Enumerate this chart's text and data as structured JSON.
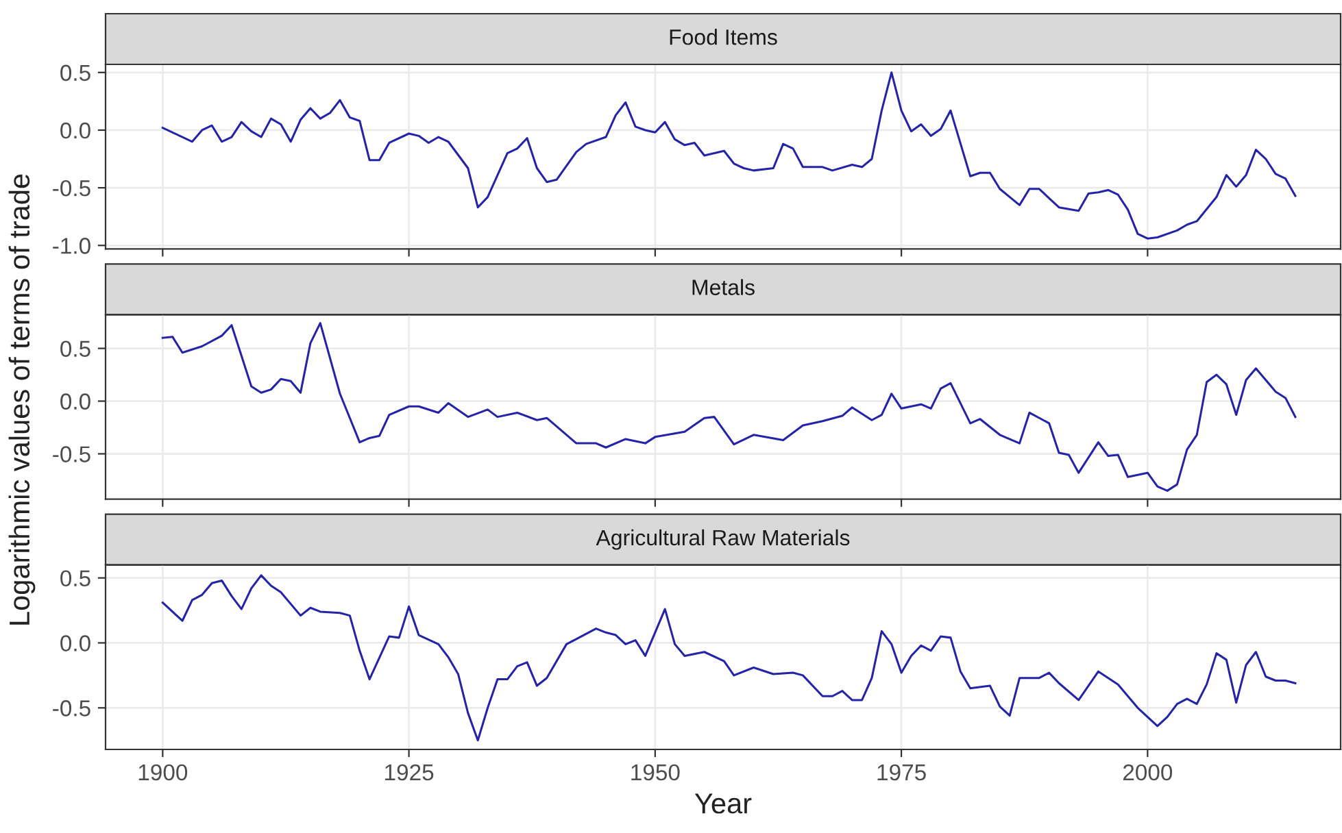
{
  "chart_data": [
    {
      "type": "line",
      "title": "Food Items",
      "tick_labels": "y",
      "grid": true,
      "xlim": [
        1894.2,
        2019.6
      ],
      "xticks": [
        1900,
        1925,
        1950,
        1975,
        2000
      ],
      "ylim": [
        -1.03,
        0.57
      ],
      "yticks": [
        {
          "value": 0.5,
          "label": "0.5"
        },
        {
          "value": 0,
          "label": "0.0"
        },
        {
          "value": -0.5,
          "label": "-0.5"
        },
        {
          "value": -1,
          "label": "-1.0"
        }
      ],
      "x": [
        1900,
        1903,
        1904,
        1905,
        1906,
        1907,
        1908,
        1909,
        1910,
        1911,
        1912,
        1913,
        1914,
        1915,
        1916,
        1917,
        1918,
        1919,
        1920,
        1921,
        1922,
        1923,
        1925,
        1926,
        1927,
        1928,
        1929,
        1931,
        1932,
        1933,
        1935,
        1936,
        1937,
        1938,
        1939,
        1940,
        1942,
        1943,
        1945,
        1946,
        1947,
        1948,
        1949,
        1950,
        1951,
        1952,
        1953,
        1954,
        1955,
        1957,
        1958,
        1959,
        1960,
        1962,
        1963,
        1964,
        1965,
        1967,
        1968,
        1970,
        1971,
        1972,
        1973,
        1974,
        1975,
        1976,
        1977,
        1978,
        1979,
        1980,
        1982,
        1983,
        1984,
        1985,
        1986,
        1987,
        1988,
        1989,
        1990,
        1991,
        1993,
        1994,
        1995,
        1996,
        1997,
        1998,
        1999,
        2000,
        2001,
        2003,
        2004,
        2005,
        2007,
        2008,
        2009,
        2010,
        2011,
        2012,
        2013,
        2014,
        2015
      ],
      "series": [
        {
          "color": "#2424a8",
          "values": [
            0.02,
            -0.1,
            0.0,
            0.04,
            -0.1,
            -0.06,
            0.07,
            -0.01,
            -0.06,
            0.1,
            0.05,
            -0.1,
            0.09,
            0.19,
            0.1,
            0.15,
            0.26,
            0.11,
            0.08,
            -0.26,
            -0.26,
            -0.11,
            -0.03,
            -0.05,
            -0.11,
            -0.06,
            -0.1,
            -0.33,
            -0.67,
            -0.58,
            -0.2,
            -0.16,
            -0.07,
            -0.33,
            -0.45,
            -0.43,
            -0.19,
            -0.12,
            -0.06,
            0.13,
            0.24,
            0.03,
            0.0,
            -0.02,
            0.07,
            -0.08,
            -0.13,
            -0.11,
            -0.22,
            -0.18,
            -0.29,
            -0.33,
            -0.35,
            -0.33,
            -0.12,
            -0.16,
            -0.32,
            -0.32,
            -0.35,
            -0.3,
            -0.32,
            -0.25,
            0.17,
            0.5,
            0.17,
            -0.01,
            0.05,
            -0.05,
            0.01,
            0.17,
            -0.4,
            -0.37,
            -0.37,
            -0.51,
            -0.58,
            -0.65,
            -0.51,
            -0.51,
            -0.59,
            -0.67,
            -0.7,
            -0.55,
            -0.54,
            -0.52,
            -0.56,
            -0.69,
            -0.9,
            -0.94,
            -0.93,
            -0.87,
            -0.82,
            -0.79,
            -0.58,
            -0.39,
            -0.49,
            -0.39,
            -0.17,
            -0.25,
            -0.38,
            -0.42,
            -0.57
          ]
        }
      ]
    },
    {
      "type": "line",
      "title": "Metals",
      "ylabel": "Logarithmic values of terms of trade",
      "tick_labels": "y",
      "grid": true,
      "xlim": [
        1894.2,
        2019.6
      ],
      "xticks": [
        1900,
        1925,
        1950,
        1975,
        2000
      ],
      "ylim": [
        -0.93,
        0.82
      ],
      "yticks": [
        {
          "value": 0.5,
          "label": "0.5"
        },
        {
          "value": 0,
          "label": "0.0"
        },
        {
          "value": -0.5,
          "label": "-0.5"
        }
      ],
      "x": [
        1900,
        1901,
        1902,
        1904,
        1906,
        1907,
        1909,
        1910,
        1911,
        1912,
        1913,
        1914,
        1915,
        1916,
        1918,
        1920,
        1921,
        1922,
        1923,
        1925,
        1926,
        1928,
        1929,
        1931,
        1933,
        1934,
        1936,
        1938,
        1939,
        1942,
        1944,
        1945,
        1947,
        1949,
        1950,
        1953,
        1955,
        1956,
        1958,
        1960,
        1963,
        1965,
        1967,
        1969,
        1970,
        1972,
        1973,
        1974,
        1975,
        1977,
        1978,
        1979,
        1980,
        1982,
        1983,
        1985,
        1987,
        1988,
        1990,
        1991,
        1992,
        1993,
        1995,
        1996,
        1997,
        1998,
        2000,
        2001,
        2002,
        2003,
        2004,
        2005,
        2006,
        2007,
        2008,
        2009,
        2010,
        2011,
        2013,
        2014,
        2015
      ],
      "series": [
        {
          "color": "#2424a8",
          "values": [
            0.6,
            0.61,
            0.46,
            0.52,
            0.62,
            0.72,
            0.14,
            0.08,
            0.11,
            0.21,
            0.19,
            0.08,
            0.55,
            0.74,
            0.07,
            -0.39,
            -0.35,
            -0.33,
            -0.13,
            -0.05,
            -0.05,
            -0.11,
            -0.02,
            -0.15,
            -0.08,
            -0.15,
            -0.11,
            -0.18,
            -0.16,
            -0.4,
            -0.4,
            -0.44,
            -0.36,
            -0.4,
            -0.34,
            -0.29,
            -0.16,
            -0.15,
            -0.41,
            -0.32,
            -0.37,
            -0.23,
            -0.19,
            -0.14,
            -0.06,
            -0.18,
            -0.13,
            0.07,
            -0.07,
            -0.03,
            -0.07,
            0.12,
            0.17,
            -0.21,
            -0.17,
            -0.32,
            -0.4,
            -0.11,
            -0.21,
            -0.49,
            -0.51,
            -0.68,
            -0.39,
            -0.52,
            -0.51,
            -0.72,
            -0.68,
            -0.81,
            -0.85,
            -0.79,
            -0.46,
            -0.32,
            0.18,
            0.25,
            0.16,
            -0.13,
            0.2,
            0.31,
            0.09,
            0.03,
            -0.15
          ]
        }
      ]
    },
    {
      "type": "line",
      "title": "Agricultural Raw Materials",
      "xlabel": "Year",
      "grid": true,
      "xlim": [
        1894.2,
        2019.6
      ],
      "xticks": [
        1900,
        1925,
        1950,
        1975,
        2000
      ],
      "ylim": [
        -0.82,
        0.6
      ],
      "yticks": [
        {
          "value": 0.5,
          "label": "0.5"
        },
        {
          "value": 0,
          "label": "0.0"
        },
        {
          "value": -0.5,
          "label": "-0.5"
        }
      ],
      "x": [
        1900,
        1902,
        1903,
        1904,
        1905,
        1906,
        1907,
        1908,
        1909,
        1910,
        1911,
        1912,
        1914,
        1915,
        1916,
        1918,
        1919,
        1920,
        1921,
        1923,
        1924,
        1925,
        1926,
        1928,
        1929,
        1930,
        1931,
        1932,
        1933,
        1934,
        1935,
        1936,
        1937,
        1938,
        1939,
        1941,
        1942,
        1944,
        1945,
        1946,
        1947,
        1948,
        1949,
        1951,
        1952,
        1953,
        1955,
        1957,
        1958,
        1960,
        1962,
        1964,
        1965,
        1967,
        1968,
        1969,
        1970,
        1971,
        1972,
        1973,
        1974,
        1975,
        1976,
        1977,
        1978,
        1979,
        1980,
        1981,
        1982,
        1984,
        1985,
        1986,
        1987,
        1989,
        1990,
        1991,
        1993,
        1995,
        1996,
        1997,
        1999,
        2000,
        2001,
        2002,
        2003,
        2004,
        2005,
        2006,
        2007,
        2008,
        2009,
        2010,
        2011,
        2012,
        2013,
        2014,
        2015
      ],
      "series": [
        {
          "color": "#2424a8",
          "values": [
            0.31,
            0.17,
            0.33,
            0.37,
            0.46,
            0.48,
            0.36,
            0.26,
            0.42,
            0.52,
            0.44,
            0.39,
            0.21,
            0.27,
            0.24,
            0.23,
            0.21,
            -0.06,
            -0.28,
            0.05,
            0.04,
            0.28,
            0.06,
            -0.01,
            -0.11,
            -0.24,
            -0.54,
            -0.75,
            -0.5,
            -0.28,
            -0.28,
            -0.18,
            -0.15,
            -0.33,
            -0.27,
            -0.01,
            0.03,
            0.11,
            0.08,
            0.06,
            -0.01,
            0.02,
            -0.1,
            0.26,
            -0.01,
            -0.1,
            -0.07,
            -0.14,
            -0.25,
            -0.19,
            -0.24,
            -0.23,
            -0.25,
            -0.41,
            -0.41,
            -0.37,
            -0.44,
            -0.44,
            -0.27,
            0.09,
            -0.01,
            -0.23,
            -0.1,
            -0.02,
            -0.06,
            0.05,
            0.04,
            -0.22,
            -0.35,
            -0.33,
            -0.49,
            -0.56,
            -0.27,
            -0.27,
            -0.23,
            -0.31,
            -0.44,
            -0.22,
            -0.27,
            -0.32,
            -0.5,
            -0.57,
            -0.64,
            -0.57,
            -0.47,
            -0.43,
            -0.47,
            -0.32,
            -0.08,
            -0.13,
            -0.46,
            -0.17,
            -0.07,
            -0.26,
            -0.29,
            -0.29,
            -0.31
          ]
        }
      ]
    }
  ]
}
